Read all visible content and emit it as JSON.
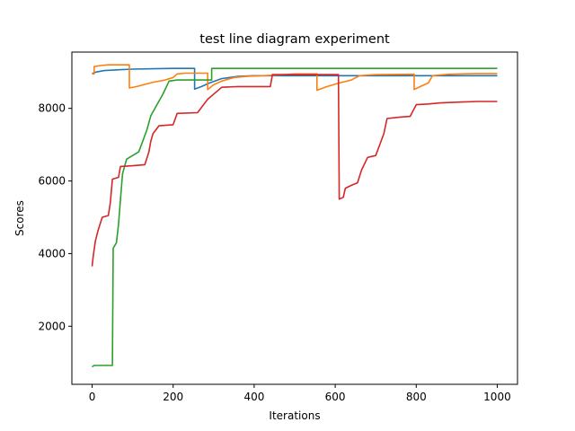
{
  "chart_data": {
    "type": "line",
    "title": "test line diagram experiment",
    "xlabel": "Iterations",
    "ylabel": "Scores",
    "xlim": [
      -50,
      1050
    ],
    "ylim": [
      400,
      9550
    ],
    "xticks": [
      0,
      200,
      400,
      600,
      800,
      1000
    ],
    "yticks": [
      2000,
      4000,
      6000,
      8000
    ],
    "grid": false,
    "legend": "none",
    "series": [
      {
        "color": "#1f77b4",
        "points": [
          [
            0,
            8960
          ],
          [
            10,
            9000
          ],
          [
            30,
            9040
          ],
          [
            60,
            9060
          ],
          [
            100,
            9080
          ],
          [
            150,
            9090
          ],
          [
            200,
            9100
          ],
          [
            253,
            9100
          ],
          [
            253,
            8530
          ],
          [
            270,
            8600
          ],
          [
            290,
            8700
          ],
          [
            320,
            8820
          ],
          [
            360,
            8880
          ],
          [
            400,
            8900
          ],
          [
            500,
            8900
          ],
          [
            600,
            8900
          ],
          [
            700,
            8900
          ],
          [
            800,
            8900
          ],
          [
            900,
            8900
          ],
          [
            1000,
            8900
          ]
        ]
      },
      {
        "color": "#ff7f0e",
        "points": [
          [
            0,
            8950
          ],
          [
            5,
            8950
          ],
          [
            5,
            9150
          ],
          [
            20,
            9180
          ],
          [
            40,
            9200
          ],
          [
            92,
            9200
          ],
          [
            92,
            8560
          ],
          [
            110,
            8600
          ],
          [
            130,
            8660
          ],
          [
            150,
            8720
          ],
          [
            180,
            8780
          ],
          [
            200,
            8850
          ],
          [
            210,
            8950
          ],
          [
            230,
            8970
          ],
          [
            285,
            8970
          ],
          [
            285,
            8520
          ],
          [
            300,
            8650
          ],
          [
            320,
            8750
          ],
          [
            350,
            8850
          ],
          [
            380,
            8880
          ],
          [
            420,
            8900
          ],
          [
            460,
            8920
          ],
          [
            500,
            8950
          ],
          [
            555,
            8950
          ],
          [
            555,
            8500
          ],
          [
            580,
            8600
          ],
          [
            610,
            8700
          ],
          [
            640,
            8780
          ],
          [
            660,
            8900
          ],
          [
            700,
            8930
          ],
          [
            795,
            8940
          ],
          [
            795,
            8520
          ],
          [
            810,
            8600
          ],
          [
            830,
            8700
          ],
          [
            840,
            8900
          ],
          [
            880,
            8940
          ],
          [
            950,
            8960
          ],
          [
            1000,
            8960
          ]
        ]
      },
      {
        "color": "#2ca02c",
        "points": [
          [
            0,
            880
          ],
          [
            5,
            920
          ],
          [
            50,
            920
          ],
          [
            52,
            4150
          ],
          [
            60,
            4300
          ],
          [
            65,
            4800
          ],
          [
            70,
            5500
          ],
          [
            75,
            6200
          ],
          [
            85,
            6600
          ],
          [
            100,
            6700
          ],
          [
            115,
            6800
          ],
          [
            125,
            7100
          ],
          [
            135,
            7400
          ],
          [
            145,
            7800
          ],
          [
            160,
            8100
          ],
          [
            175,
            8400
          ],
          [
            190,
            8750
          ],
          [
            210,
            8780
          ],
          [
            295,
            8780
          ],
          [
            295,
            9100
          ],
          [
            400,
            9100
          ],
          [
            500,
            9100
          ],
          [
            600,
            9100
          ],
          [
            700,
            9100
          ],
          [
            800,
            9100
          ],
          [
            900,
            9100
          ],
          [
            1000,
            9100
          ]
        ]
      },
      {
        "color": "#d62728",
        "points": [
          [
            0,
            3650
          ],
          [
            3,
            3950
          ],
          [
            8,
            4350
          ],
          [
            15,
            4650
          ],
          [
            25,
            5000
          ],
          [
            40,
            5050
          ],
          [
            45,
            5400
          ],
          [
            50,
            6050
          ],
          [
            65,
            6100
          ],
          [
            70,
            6400
          ],
          [
            100,
            6420
          ],
          [
            130,
            6450
          ],
          [
            140,
            6800
          ],
          [
            145,
            7100
          ],
          [
            150,
            7300
          ],
          [
            165,
            7520
          ],
          [
            200,
            7550
          ],
          [
            210,
            7860
          ],
          [
            260,
            7880
          ],
          [
            285,
            8250
          ],
          [
            320,
            8580
          ],
          [
            360,
            8600
          ],
          [
            400,
            8600
          ],
          [
            440,
            8600
          ],
          [
            445,
            8930
          ],
          [
            500,
            8930
          ],
          [
            608,
            8930
          ],
          [
            610,
            5500
          ],
          [
            620,
            5550
          ],
          [
            625,
            5800
          ],
          [
            640,
            5880
          ],
          [
            655,
            5950
          ],
          [
            665,
            6300
          ],
          [
            680,
            6650
          ],
          [
            700,
            6700
          ],
          [
            710,
            7000
          ],
          [
            720,
            7300
          ],
          [
            728,
            7720
          ],
          [
            760,
            7760
          ],
          [
            785,
            7780
          ],
          [
            800,
            8100
          ],
          [
            830,
            8120
          ],
          [
            860,
            8150
          ],
          [
            900,
            8170
          ],
          [
            950,
            8190
          ],
          [
            1000,
            8190
          ]
        ]
      }
    ]
  }
}
